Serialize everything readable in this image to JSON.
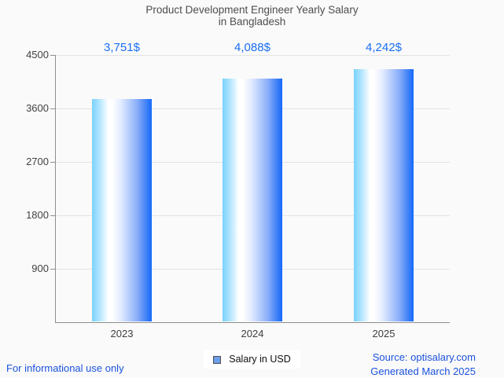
{
  "title": {
    "line1": "Product Development Engineer Yearly Salary",
    "line2": "in Bangladesh"
  },
  "chart_data": {
    "type": "bar",
    "title": "Product Development Engineer Yearly Salary in Bangladesh",
    "categories": [
      "2023",
      "2024",
      "2025"
    ],
    "values": [
      3751,
      4088,
      4242
    ],
    "value_labels": [
      "3,751$",
      "4,088$",
      "4,242$"
    ],
    "series": [
      {
        "name": "Salary in USD",
        "values": [
          3751,
          4088,
          4242
        ]
      }
    ],
    "xlabel": "",
    "ylabel": "",
    "ylim": [
      0,
      4500
    ],
    "yticks": [
      900,
      1800,
      2700,
      3600,
      4500
    ],
    "ytick_labels_top_to_bottom": [
      "4500",
      "3600",
      "2700",
      "1800",
      "900"
    ],
    "grid": true,
    "legend_position": "bottom",
    "bar_gradient": [
      "#79d2fd",
      "#ffffff",
      "#1569fc"
    ],
    "value_label_color": "#1b6ef3"
  },
  "legend": {
    "label": "Salary in USD",
    "swatch_color": "#6d9eec"
  },
  "footer": {
    "disclaimer": "For informational use only",
    "source": "Source: optisalary.com",
    "generated": "Generated March 2025",
    "link_color": "#1b52dd"
  }
}
